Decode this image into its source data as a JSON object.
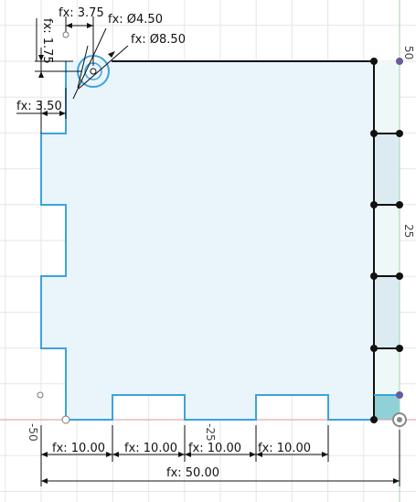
{
  "colors": {
    "background": "#ffffff",
    "grid": "#e6e6e6",
    "axis_x": "#d99a9a",
    "axis_y": "#9fd6a8",
    "profile_fill": "#eaf4fb",
    "profile_fill_dark": "#dcebf2",
    "profile_edge": "#3ba3dd",
    "sketch_line": "#111111",
    "point": "#111111",
    "selected_fill": "#8fd1d6",
    "constraint_point": "#6a5a9e"
  },
  "dimensions": {
    "hole_x": "fx: 3.75",
    "hole_y": "fx: 1.75",
    "hole_small_dia": "fx: Ø4.50",
    "hole_large_dia": "fx: Ø8.50",
    "tab_offset": "fx: 3.50",
    "bottom_1": "fx: 10.00",
    "bottom_2": "fx: 10.00",
    "bottom_3": "fx: 10.00",
    "bottom_4": "fx: 10.00",
    "total_width": "fx: 50.00"
  },
  "axis_labels": {
    "right_top": "50",
    "right_mid": "25",
    "bottom_left": "-50",
    "bottom_mid": "-25"
  }
}
